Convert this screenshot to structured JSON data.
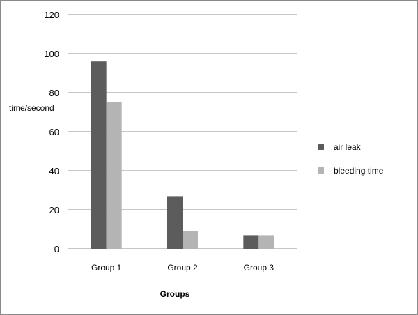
{
  "chart_data": {
    "type": "bar",
    "categories": [
      "Group 1",
      "Group 2",
      "Group 3"
    ],
    "series": [
      {
        "name": "air leak",
        "color": "#5c5c5c",
        "values": [
          96,
          27,
          7
        ]
      },
      {
        "name": "bleeding time",
        "color": "#b4b4b4",
        "values": [
          75,
          9,
          7
        ]
      }
    ],
    "title": "",
    "xlabel": "Groups",
    "ylabel": "time/second",
    "ylim": [
      0,
      120
    ],
    "yticks": [
      0,
      20,
      40,
      60,
      80,
      100,
      120
    ],
    "grid": true,
    "legend_position": "right"
  }
}
